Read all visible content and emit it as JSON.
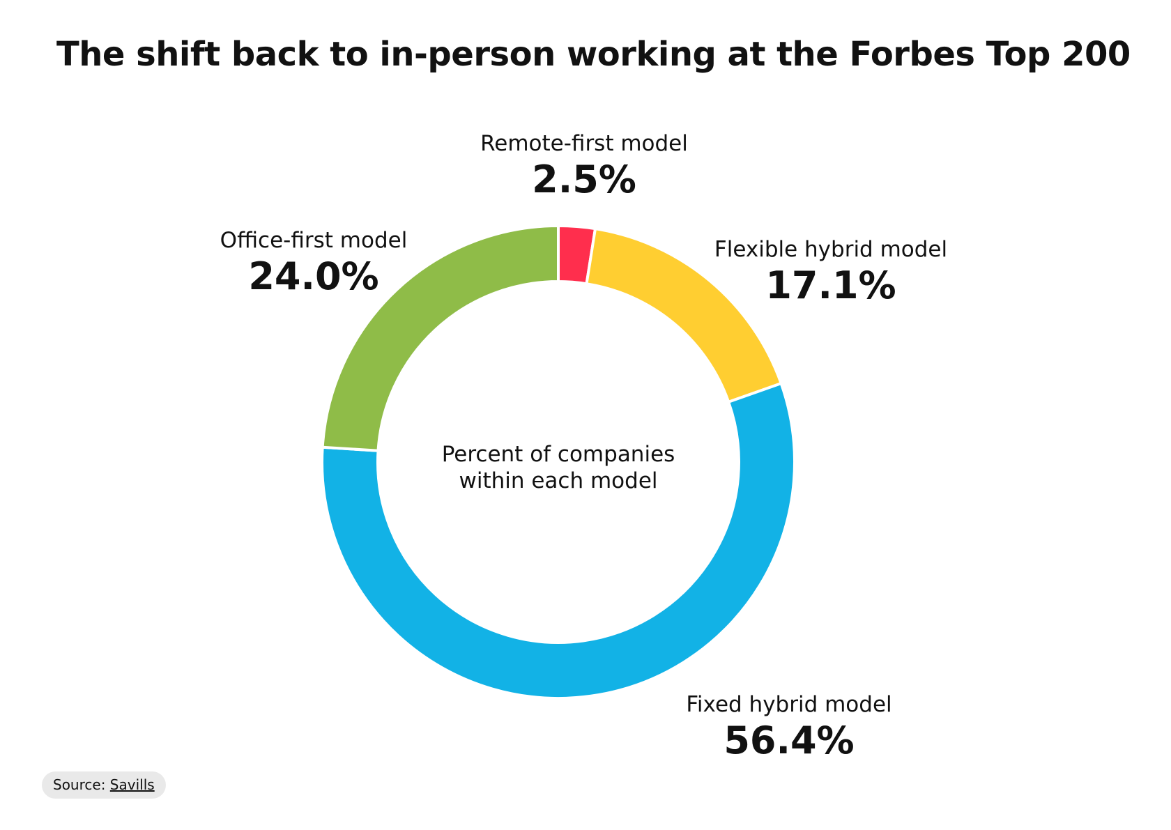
{
  "chart_data": {
    "type": "pie",
    "variant": "donut",
    "title": "The shift back to in-person working at the Forbes Top 200",
    "center_text": [
      "Percent of companies",
      "within each model"
    ],
    "slices": [
      {
        "label": "Remote-first model",
        "value": 2.5,
        "display": "2.5%",
        "color": "#FF2E4D"
      },
      {
        "label": "Flexible hybrid model",
        "value": 17.1,
        "display": "17.1%",
        "color": "#FFCE31"
      },
      {
        "label": "Fixed hybrid model",
        "value": 56.4,
        "display": "56.4%",
        "color": "#12B2E6"
      },
      {
        "label": "Office-first model",
        "value": 24.0,
        "display": "24.0%",
        "color": "#8FBC48"
      }
    ]
  },
  "source": {
    "prefix": "Source: ",
    "link": "Savills"
  }
}
